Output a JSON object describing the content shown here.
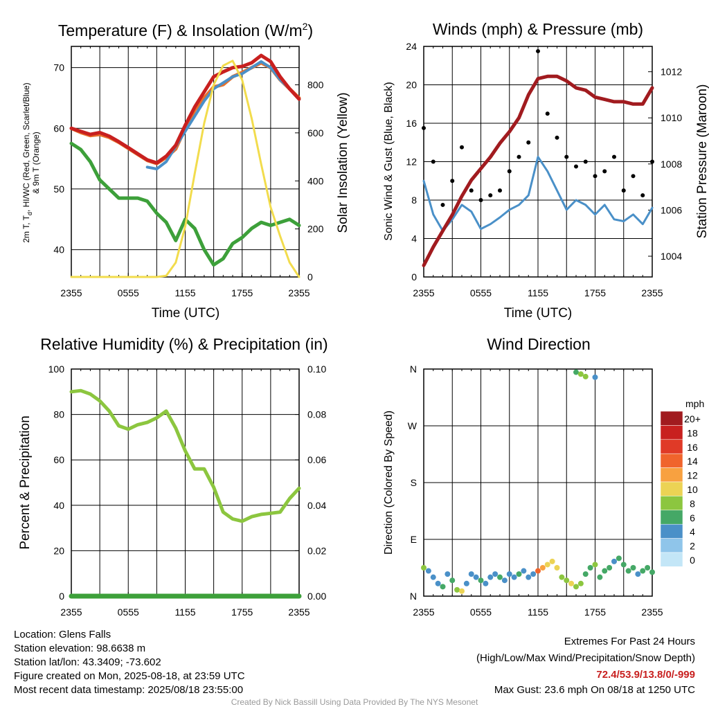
{
  "charts": {
    "temp": {
      "title_main": "Temperature (F) & Insolation (W/m",
      "title_sup": "2",
      "title_end": ")",
      "ylabel_l1": "2m T, T",
      "ylabel_sub": "d",
      "ylabel_l1b": ", HI/WC (Red, Green, Scarlet/Blue)",
      "ylabel_l2": "& 9m T (Orange)",
      "ylabel_right": "Solar Insolation (Yellow)",
      "xlabel": "Time (UTC)"
    },
    "wind": {
      "title": "Winds (mph) & Pressure (mb)",
      "ylabel_left": "Sonic Wind & Gust (Blue, Black)",
      "ylabel_right": "Station Pressure (Maroon)",
      "xlabel": "Time (UTC)"
    },
    "rh": {
      "title": "Relative Humidity (%) & Precipitation (in)",
      "ylabel_left": "Percent & Precipitation"
    },
    "dir": {
      "title": "Wind Direction",
      "ylabel_left": "Direction (Colored By Speed)",
      "legend_title": "mph",
      "legend_labels": [
        "20+",
        "18",
        "16",
        "14",
        "12",
        "10",
        "8",
        "6",
        "4",
        "2",
        "0"
      ],
      "legend_colors": [
        "#a11b1f",
        "#c8201f",
        "#e03a27",
        "#f0642c",
        "#f8a140",
        "#ecd354",
        "#8cc63f",
        "#45a866",
        "#4a90c8",
        "#8fc5ea",
        "#c3e6f7"
      ]
    }
  },
  "info": {
    "location": "Location: Glens Falls",
    "elevation": "Station elevation: 98.6638 m",
    "latlon": "Station lat/lon: 43.3409; -73.602",
    "created": "Figure created on Mon, 2025-08-18, at 23:59 UTC",
    "recent": "Most recent data timestamp: 2025/08/18 23:55:00"
  },
  "extremes": {
    "title": "Extremes For Past 24 Hours",
    "subtitle": "(High/Low/Max Wind/Precipitation/Snow Depth)",
    "values": "72.4/53.9/13.8/0/-999",
    "values_color": "#c8201f",
    "gust": "Max Gust: 23.6 mph On 08/18 at 1250 UTC"
  },
  "credit": "Created By Nick Bassill Using Data Provided By The NYS Mesonet",
  "chart_data": [
    {
      "type": "line",
      "x_ticks": [
        "2355",
        "0555",
        "1155",
        "1755",
        "2355"
      ],
      "y_left_ticks": [
        40,
        50,
        60,
        70
      ],
      "ylim_left": [
        35.5,
        73.5
      ],
      "y_right_ticks": [
        0,
        200,
        400,
        600,
        800
      ],
      "ylim_right": [
        0,
        960
      ],
      "grid": true,
      "series": [
        {
          "axis": "left",
          "color": "#3da03a",
          "width": 5,
          "x": [
            0,
            1,
            2,
            3,
            4,
            5,
            6,
            7,
            8,
            9,
            10,
            11,
            12,
            13,
            14,
            15,
            16,
            17,
            18,
            19,
            20,
            21,
            22,
            23,
            24
          ],
          "values": [
            57.5,
            56.5,
            54.5,
            51.5,
            50,
            48.5,
            48.5,
            48.5,
            48,
            46,
            44.5,
            41.5,
            45,
            43.5,
            40,
            37.5,
            38.5,
            41,
            42,
            43.5,
            44.5,
            44,
            44.5,
            45,
            44
          ]
        },
        {
          "axis": "left",
          "color": "#e8702a",
          "width": 5,
          "x": [
            0,
            1,
            2,
            3,
            4,
            5,
            6,
            7,
            8,
            9,
            10,
            11,
            12,
            13,
            14,
            15,
            16,
            17,
            18,
            19,
            20,
            21,
            22,
            23,
            24
          ],
          "values": [
            60,
            59.3,
            58.8,
            59,
            58.5,
            57.7,
            56.7,
            55.7,
            54.7,
            54.2,
            55.2,
            56.6,
            60,
            63,
            65,
            66.8,
            67.2,
            68.5,
            69.2,
            70,
            70.8,
            70,
            68,
            66.5,
            65
          ]
        },
        {
          "axis": "left",
          "color": "#4a90c8",
          "width": 4,
          "x": [
            0,
            1,
            2,
            3,
            4,
            5,
            6,
            7,
            8,
            9,
            10,
            11,
            12,
            13,
            14,
            15,
            16,
            17,
            18,
            19,
            20,
            21,
            22,
            23,
            24
          ],
          "values": [
            58.2,
            null,
            null,
            55.5,
            null,
            null,
            null,
            null,
            53.6,
            53.3,
            54.5,
            57,
            59.5,
            62,
            64.5,
            66.5,
            67.5,
            68.5,
            69,
            70,
            71,
            70,
            68,
            66.5,
            64.8
          ]
        },
        {
          "axis": "left",
          "color": "#c8201f",
          "width": 5,
          "x": [
            0,
            1,
            2,
            3,
            4,
            5,
            6,
            7,
            8,
            9,
            10,
            11,
            12,
            13,
            14,
            15,
            16,
            17,
            18,
            19,
            20,
            21,
            22,
            23,
            24
          ],
          "values": [
            60,
            59.5,
            59,
            59.3,
            58.7,
            57.8,
            56.8,
            55.8,
            54.8,
            54.3,
            55.4,
            57.2,
            60.5,
            63.5,
            66,
            68.5,
            69.3,
            70,
            70.2,
            70.8,
            72,
            71,
            68.5,
            66.5,
            64.8
          ]
        },
        {
          "axis": "right",
          "color": "#f2dc4d",
          "width": 3,
          "x": [
            0,
            1,
            2,
            3,
            4,
            5,
            6,
            7,
            8,
            9,
            10,
            11,
            12,
            13,
            14,
            15,
            16,
            17,
            18,
            19,
            20,
            21,
            22,
            23,
            24
          ],
          "values": [
            0,
            0,
            0,
            0,
            0,
            0,
            0,
            0,
            0,
            0,
            5,
            60,
            210,
            430,
            640,
            800,
            880,
            900,
            820,
            660,
            470,
            290,
            170,
            60,
            0
          ]
        }
      ]
    },
    {
      "type": "line",
      "x_ticks": [
        "2355",
        "0555",
        "1155",
        "1755",
        "2355"
      ],
      "y_left_ticks": [
        0,
        4,
        8,
        12,
        16,
        20,
        24
      ],
      "ylim_left": [
        0,
        24
      ],
      "y_right_ticks": [
        1004,
        1006,
        1008,
        1010,
        1012
      ],
      "ylim_right": [
        1003.1,
        1013.1
      ],
      "grid": true,
      "series": [
        {
          "axis": "left",
          "color": "#4a90c8",
          "width": 3,
          "x": [
            0,
            1,
            2,
            3,
            4,
            5,
            6,
            7,
            8,
            9,
            10,
            11,
            12,
            13,
            14,
            15,
            16,
            17,
            18,
            19,
            20,
            21,
            22,
            23,
            24
          ],
          "values": [
            10,
            6.5,
            4.8,
            6,
            7.5,
            6.8,
            5,
            5.5,
            6.2,
            7,
            7.5,
            8.5,
            12.5,
            11,
            9,
            7,
            8,
            7.5,
            6.5,
            7.5,
            6,
            5.8,
            6.5,
            5.5,
            7.2
          ]
        },
        {
          "axis": "left",
          "color": "#000000",
          "kind": "scatter",
          "x": [
            0,
            1,
            2,
            3,
            4,
            5,
            6,
            7,
            8,
            9,
            10,
            11,
            12,
            13,
            14,
            15,
            16,
            17,
            18,
            19,
            20,
            21,
            22,
            23,
            24
          ],
          "values": [
            15.5,
            12,
            7.5,
            10,
            13.5,
            9,
            8,
            8.5,
            9,
            11,
            12.5,
            14,
            23.5,
            17,
            14.5,
            12.5,
            11.5,
            12,
            10.5,
            11,
            12.5,
            9,
            10.5,
            8.5,
            12
          ]
        },
        {
          "axis": "right",
          "color": "#a11b1f",
          "width": 5,
          "x": [
            0,
            1,
            2,
            3,
            4,
            5,
            6,
            7,
            8,
            9,
            10,
            11,
            12,
            13,
            14,
            15,
            16,
            17,
            18,
            19,
            20,
            21,
            22,
            23,
            24
          ],
          "values": [
            1003.6,
            1004.4,
            1005.1,
            1005.8,
            1006.6,
            1007.3,
            1007.8,
            1008.3,
            1008.9,
            1009.4,
            1010,
            1011,
            1011.7,
            1011.8,
            1011.8,
            1011.6,
            1011.3,
            1011.2,
            1010.9,
            1010.8,
            1010.7,
            1010.7,
            1010.6,
            1010.6,
            1011.3
          ]
        }
      ]
    },
    {
      "type": "line",
      "x_ticks": [
        "2355",
        "0555",
        "1155",
        "1755",
        "2355"
      ],
      "y_left_ticks": [
        0,
        20,
        40,
        60,
        80,
        100
      ],
      "ylim_left": [
        0,
        100
      ],
      "y_right_ticks": [
        "0.00",
        "0.02",
        "0.04",
        "0.06",
        "0.08",
        "0.10"
      ],
      "ylim_right": [
        0,
        0.1
      ],
      "grid": true,
      "series": [
        {
          "axis": "left",
          "color": "#8cc63f",
          "width": 5,
          "x": [
            0,
            1,
            2,
            3,
            4,
            5,
            6,
            7,
            8,
            9,
            10,
            11,
            12,
            13,
            14,
            15,
            16,
            17,
            18,
            19,
            20,
            21,
            22,
            23,
            24
          ],
          "values": [
            90,
            90.5,
            89,
            86,
            81.5,
            75,
            73.5,
            75.5,
            76.5,
            78.5,
            81.5,
            74,
            64,
            56,
            56,
            48,
            37,
            34,
            33,
            35,
            36,
            36.5,
            37,
            43,
            47.5
          ]
        },
        {
          "axis": "right",
          "color": "#3da03a",
          "width": 7,
          "x": [
            0,
            24
          ],
          "values": [
            0,
            0
          ]
        }
      ]
    },
    {
      "type": "scatter",
      "x_ticks": [
        "2355",
        "0555",
        "1155",
        "1755",
        "2355"
      ],
      "y_ticks": [
        "N",
        "E",
        "S",
        "W",
        "N"
      ],
      "ylim": [
        0,
        360
      ],
      "grid": true,
      "legend": "right",
      "series": [
        {
          "colored_by": "speed",
          "x": [
            0,
            0.5,
            1,
            1.5,
            2,
            2.5,
            3,
            3.5,
            4,
            4.5,
            5,
            5.5,
            6,
            6.5,
            7,
            7.5,
            8,
            8.5,
            9,
            9.5,
            10,
            10.5,
            11,
            11.5,
            12,
            12.5,
            13,
            13.5,
            14,
            14.5,
            15,
            15.5,
            16,
            16.5,
            17,
            17.5,
            18,
            18.5,
            19,
            19.5,
            20,
            20.5,
            21,
            21.5,
            22,
            22.5,
            23,
            23.5,
            24,
            16,
            16.5,
            17,
            18
          ],
          "values": [
            45,
            40,
            30,
            20,
            15,
            35,
            25,
            10,
            8,
            20,
            35,
            30,
            25,
            20,
            30,
            35,
            30,
            25,
            35,
            30,
            35,
            40,
            30,
            35,
            40,
            45,
            50,
            55,
            45,
            30,
            25,
            20,
            15,
            20,
            35,
            45,
            50,
            30,
            40,
            45,
            55,
            60,
            50,
            40,
            45,
            35,
            40,
            45,
            38,
            355,
            352,
            348,
            347
          ],
          "speed": [
            8,
            4,
            4,
            4,
            6,
            4,
            6,
            8,
            10,
            4,
            4,
            4,
            6,
            4,
            4,
            4,
            6,
            4,
            4,
            4,
            6,
            4,
            4,
            4,
            14,
            12,
            10,
            10,
            10,
            8,
            8,
            10,
            8,
            8,
            6,
            6,
            8,
            6,
            6,
            6,
            4,
            6,
            6,
            6,
            6,
            4,
            6,
            6,
            6,
            6,
            8,
            8,
            4
          ]
        }
      ]
    }
  ]
}
